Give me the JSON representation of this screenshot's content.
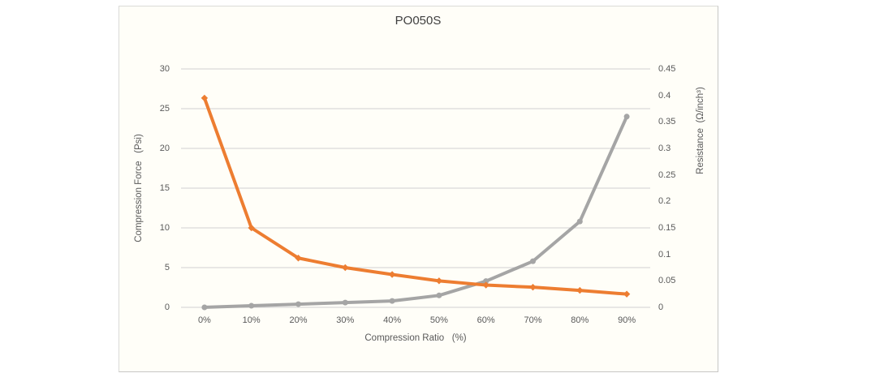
{
  "chart_data": {
    "type": "line",
    "title": "PO050S",
    "categories": [
      "0%",
      "10%",
      "20%",
      "30%",
      "40%",
      "50%",
      "60%",
      "70%",
      "80%",
      "90%"
    ],
    "series": [
      {
        "name": "Compression Force",
        "axis": "left",
        "unit": "Psi",
        "color": "#A5A5A5",
        "marker": "circle",
        "values": [
          0,
          0.2,
          0.4,
          0.6,
          0.8,
          1.5,
          3.3,
          5.8,
          10.8,
          24
        ]
      },
      {
        "name": "Resistance",
        "axis": "right",
        "unit": "Ω/inch³",
        "color": "#ED7D31",
        "marker": "diamond",
        "values": [
          0.395,
          0.15,
          0.093,
          0.075,
          0.062,
          0.05,
          0.042,
          0.038,
          0.032,
          0.025
        ]
      }
    ],
    "xlabel": "Compression Ratio   (%)",
    "ylabel_left": "Compression Force   (Psi)",
    "ylabel_right": "Resistance  (Ω/inch³)",
    "y_left_ticks": [
      "0",
      "5",
      "10",
      "15",
      "20",
      "25",
      "30"
    ],
    "y_right_ticks": [
      "0",
      "0.05",
      "0.1",
      "0.15",
      "0.2",
      "0.25",
      "0.3",
      "0.35",
      "0.4",
      "0.45"
    ],
    "ylim_left": [
      0,
      30
    ],
    "ylim_right": [
      0,
      0.45
    ],
    "xlim": null,
    "grid": "horizontal",
    "legend": "none",
    "colors": {
      "gridline": "#D9D9D9",
      "axis_text": "#595959",
      "title_text": "#3F3F3F",
      "chart_background": "#FFFEF8",
      "page_background": "#FFFFFF",
      "border": "#D0D0CE"
    }
  }
}
